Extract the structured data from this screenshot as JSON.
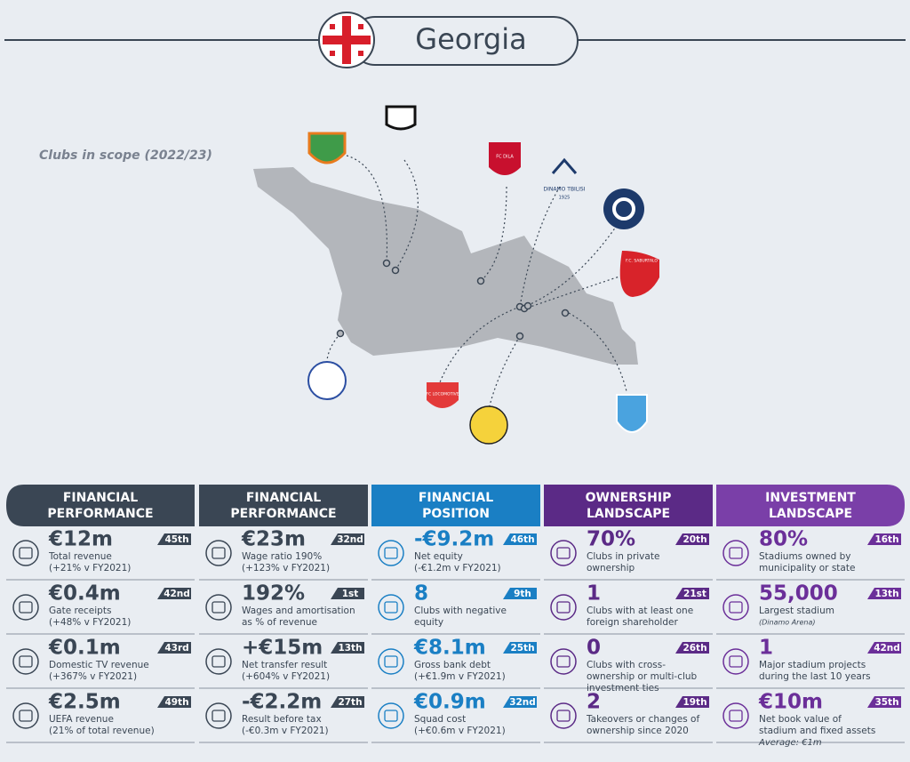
{
  "header": {
    "title": "Georgia"
  },
  "map": {
    "caption": "Clubs in scope (2022/23)",
    "logo_texts": [
      "DINAMO TBILISI",
      "1925",
      "FC DILA",
      "FC LOCOMOTIVE",
      "F.C. SABURTALO"
    ]
  },
  "columns": [
    {
      "heading": "FINANCIAL PERFORMANCE",
      "items": [
        {
          "value": "€12m",
          "rank": "45th",
          "lines": [
            "Total revenue",
            "(+21% v FY2021)"
          ]
        },
        {
          "value": "€0.4m",
          "rank": "42nd",
          "lines": [
            "Gate receipts",
            "(+48% v FY2021)"
          ]
        },
        {
          "value": "€0.1m",
          "rank": "43rd",
          "lines": [
            "Domestic TV revenue",
            "(+367% v FY2021)"
          ]
        },
        {
          "value": "€2.5m",
          "rank": "49th",
          "lines": [
            "UEFA revenue",
            "(21% of total revenue)"
          ]
        }
      ]
    },
    {
      "heading": "FINANCIAL PERFORMANCE",
      "items": [
        {
          "value": "€23m",
          "rank": "32nd",
          "lines": [
            "Wage ratio 190%",
            "(+123% v FY2021)"
          ]
        },
        {
          "value": "192%",
          "rank": "1st",
          "lines": [
            "Wages and amortisation",
            "as % of revenue"
          ]
        },
        {
          "value": "+€15m",
          "rank": "13th",
          "lines": [
            "Net transfer result",
            "(+604% v FY2021)"
          ]
        },
        {
          "value": "-€2.2m",
          "rank": "27th",
          "lines": [
            "Result before tax",
            "(-€0.3m v FY2021)"
          ]
        }
      ]
    },
    {
      "heading": "FINANCIAL POSITION",
      "items": [
        {
          "value": "-€9.2m",
          "rank": "46th",
          "lines": [
            "Net equity",
            "(-€1.2m v FY2021)"
          ]
        },
        {
          "value": "8",
          "rank": "9th",
          "lines": [
            "Clubs with negative",
            "equity"
          ]
        },
        {
          "value": "€8.1m",
          "rank": "25th",
          "lines": [
            "Gross bank debt",
            "(+€1.9m v FY2021)"
          ]
        },
        {
          "value": "€0.9m",
          "rank": "32nd",
          "lines": [
            "Squad cost",
            "(+€0.6m v FY2021)"
          ]
        }
      ]
    },
    {
      "heading": "OWNERSHIP LANDSCAPE",
      "items": [
        {
          "value": "70%",
          "rank": "20th",
          "lines": [
            "Clubs in private",
            "ownership"
          ]
        },
        {
          "value": "1",
          "rank": "21st",
          "lines": [
            "Clubs with at least one",
            "foreign shareholder"
          ]
        },
        {
          "value": "0",
          "rank": "26th",
          "lines": [
            "Clubs with cross-",
            "ownership or multi-club",
            "investment ties"
          ]
        },
        {
          "value": "2",
          "rank": "19th",
          "lines": [
            "Takeovers or changes of",
            "ownership since 2020"
          ]
        }
      ]
    },
    {
      "heading": "INVESTMENT LANDSCAPE",
      "items": [
        {
          "value": "80%",
          "rank": "16th",
          "lines": [
            "Stadiums owned by",
            "municipality or state"
          ]
        },
        {
          "value": "55,000",
          "rank": "13th",
          "lines": [
            "Largest stadium"
          ],
          "note": "(Dinamo Arena)"
        },
        {
          "value": "1",
          "rank": "42nd",
          "lines": [
            "Major stadium projects",
            "during the last 10 years"
          ]
        },
        {
          "value": "€10m",
          "rank": "35th",
          "lines": [
            "Net book value of",
            "stadium and fixed assets"
          ],
          "note": "Average: €1m"
        }
      ]
    }
  ]
}
